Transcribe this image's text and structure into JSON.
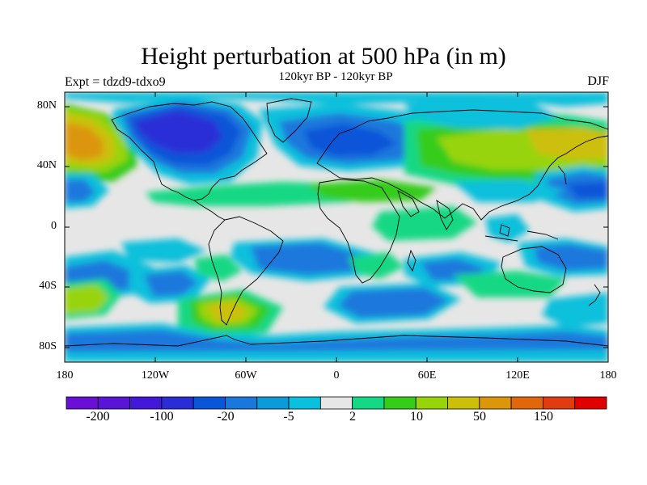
{
  "title": "Height perturbation at 500 hPa (in m)",
  "left_label": "Expt = tdzd9-tdxo9",
  "center_label": "120kyr BP - 120kyr BP",
  "right_label": "DJF",
  "lat_labels": [
    "80N",
    "40N",
    "0",
    "40S",
    "80S"
  ],
  "lon_labels": [
    "180",
    "120W",
    "60W",
    "0",
    "60E",
    "120E",
    "180"
  ],
  "colorbar": {
    "colors": [
      "#6a0fd6",
      "#5a14d6",
      "#4318d6",
      "#2a2dd6",
      "#0a55d8",
      "#1a78dc",
      "#0d9ad8",
      "#0ac0dc",
      "#e6e6e6",
      "#14d884",
      "#36cc1a",
      "#98d40a",
      "#ccbf0a",
      "#dc960a",
      "#e0680a",
      "#e03c12",
      "#e00000"
    ],
    "tick_labels": [
      "-200",
      "-100",
      "-20",
      "-5",
      "2",
      "10",
      "50",
      "150"
    ]
  }
}
